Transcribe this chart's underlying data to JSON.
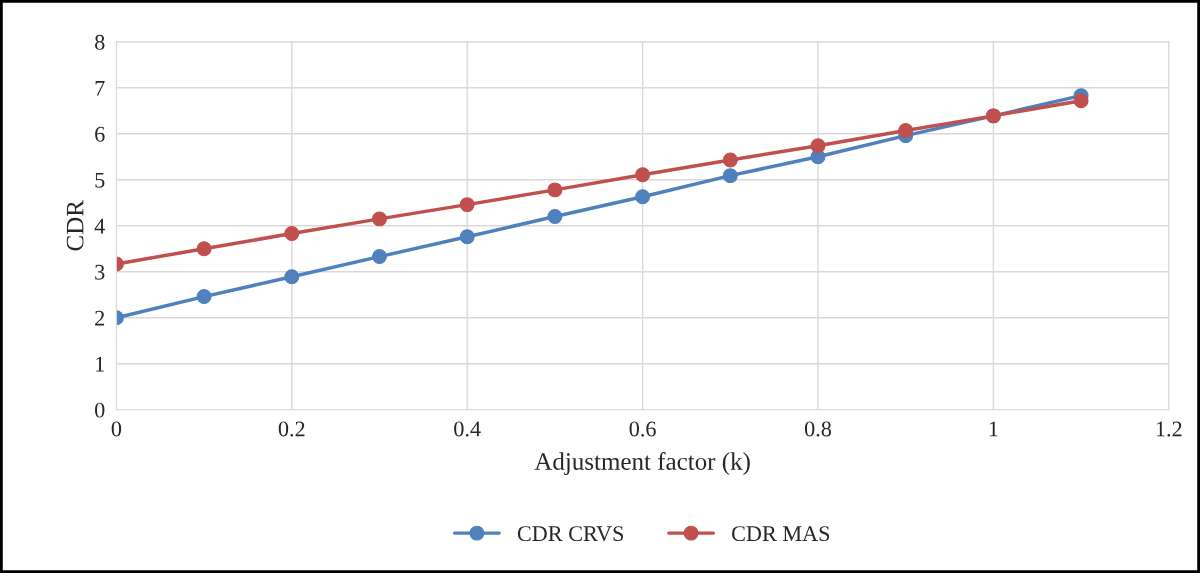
{
  "chart_data": {
    "type": "line",
    "xlabel": "Adjustment factor (k)",
    "ylabel": "CDR",
    "x": [
      0,
      0.1,
      0.2,
      0.3,
      0.4,
      0.5,
      0.6,
      0.7,
      0.8,
      0.9,
      1.0,
      1.1
    ],
    "series": [
      {
        "name": "CDR CRVS",
        "color": "#4f81bd",
        "values": [
          2.0,
          2.46,
          2.89,
          3.33,
          3.76,
          4.2,
          4.63,
          5.09,
          5.5,
          5.96,
          6.39,
          6.83
        ]
      },
      {
        "name": "CDR MAS",
        "color": "#c0504d",
        "values": [
          3.17,
          3.5,
          3.83,
          4.15,
          4.46,
          4.78,
          5.11,
          5.43,
          5.74,
          6.07,
          6.39,
          6.72
        ]
      }
    ],
    "xlim": [
      0,
      1.2
    ],
    "xticks": [
      0,
      0.2,
      0.4,
      0.6,
      0.8,
      1,
      1.2
    ],
    "ylim": [
      0,
      8
    ],
    "yticks": [
      0,
      1,
      2,
      3,
      4,
      5,
      6,
      7,
      8
    ],
    "grid": true,
    "legend": "bottom",
    "marker": "circle",
    "line_style": "solid"
  }
}
